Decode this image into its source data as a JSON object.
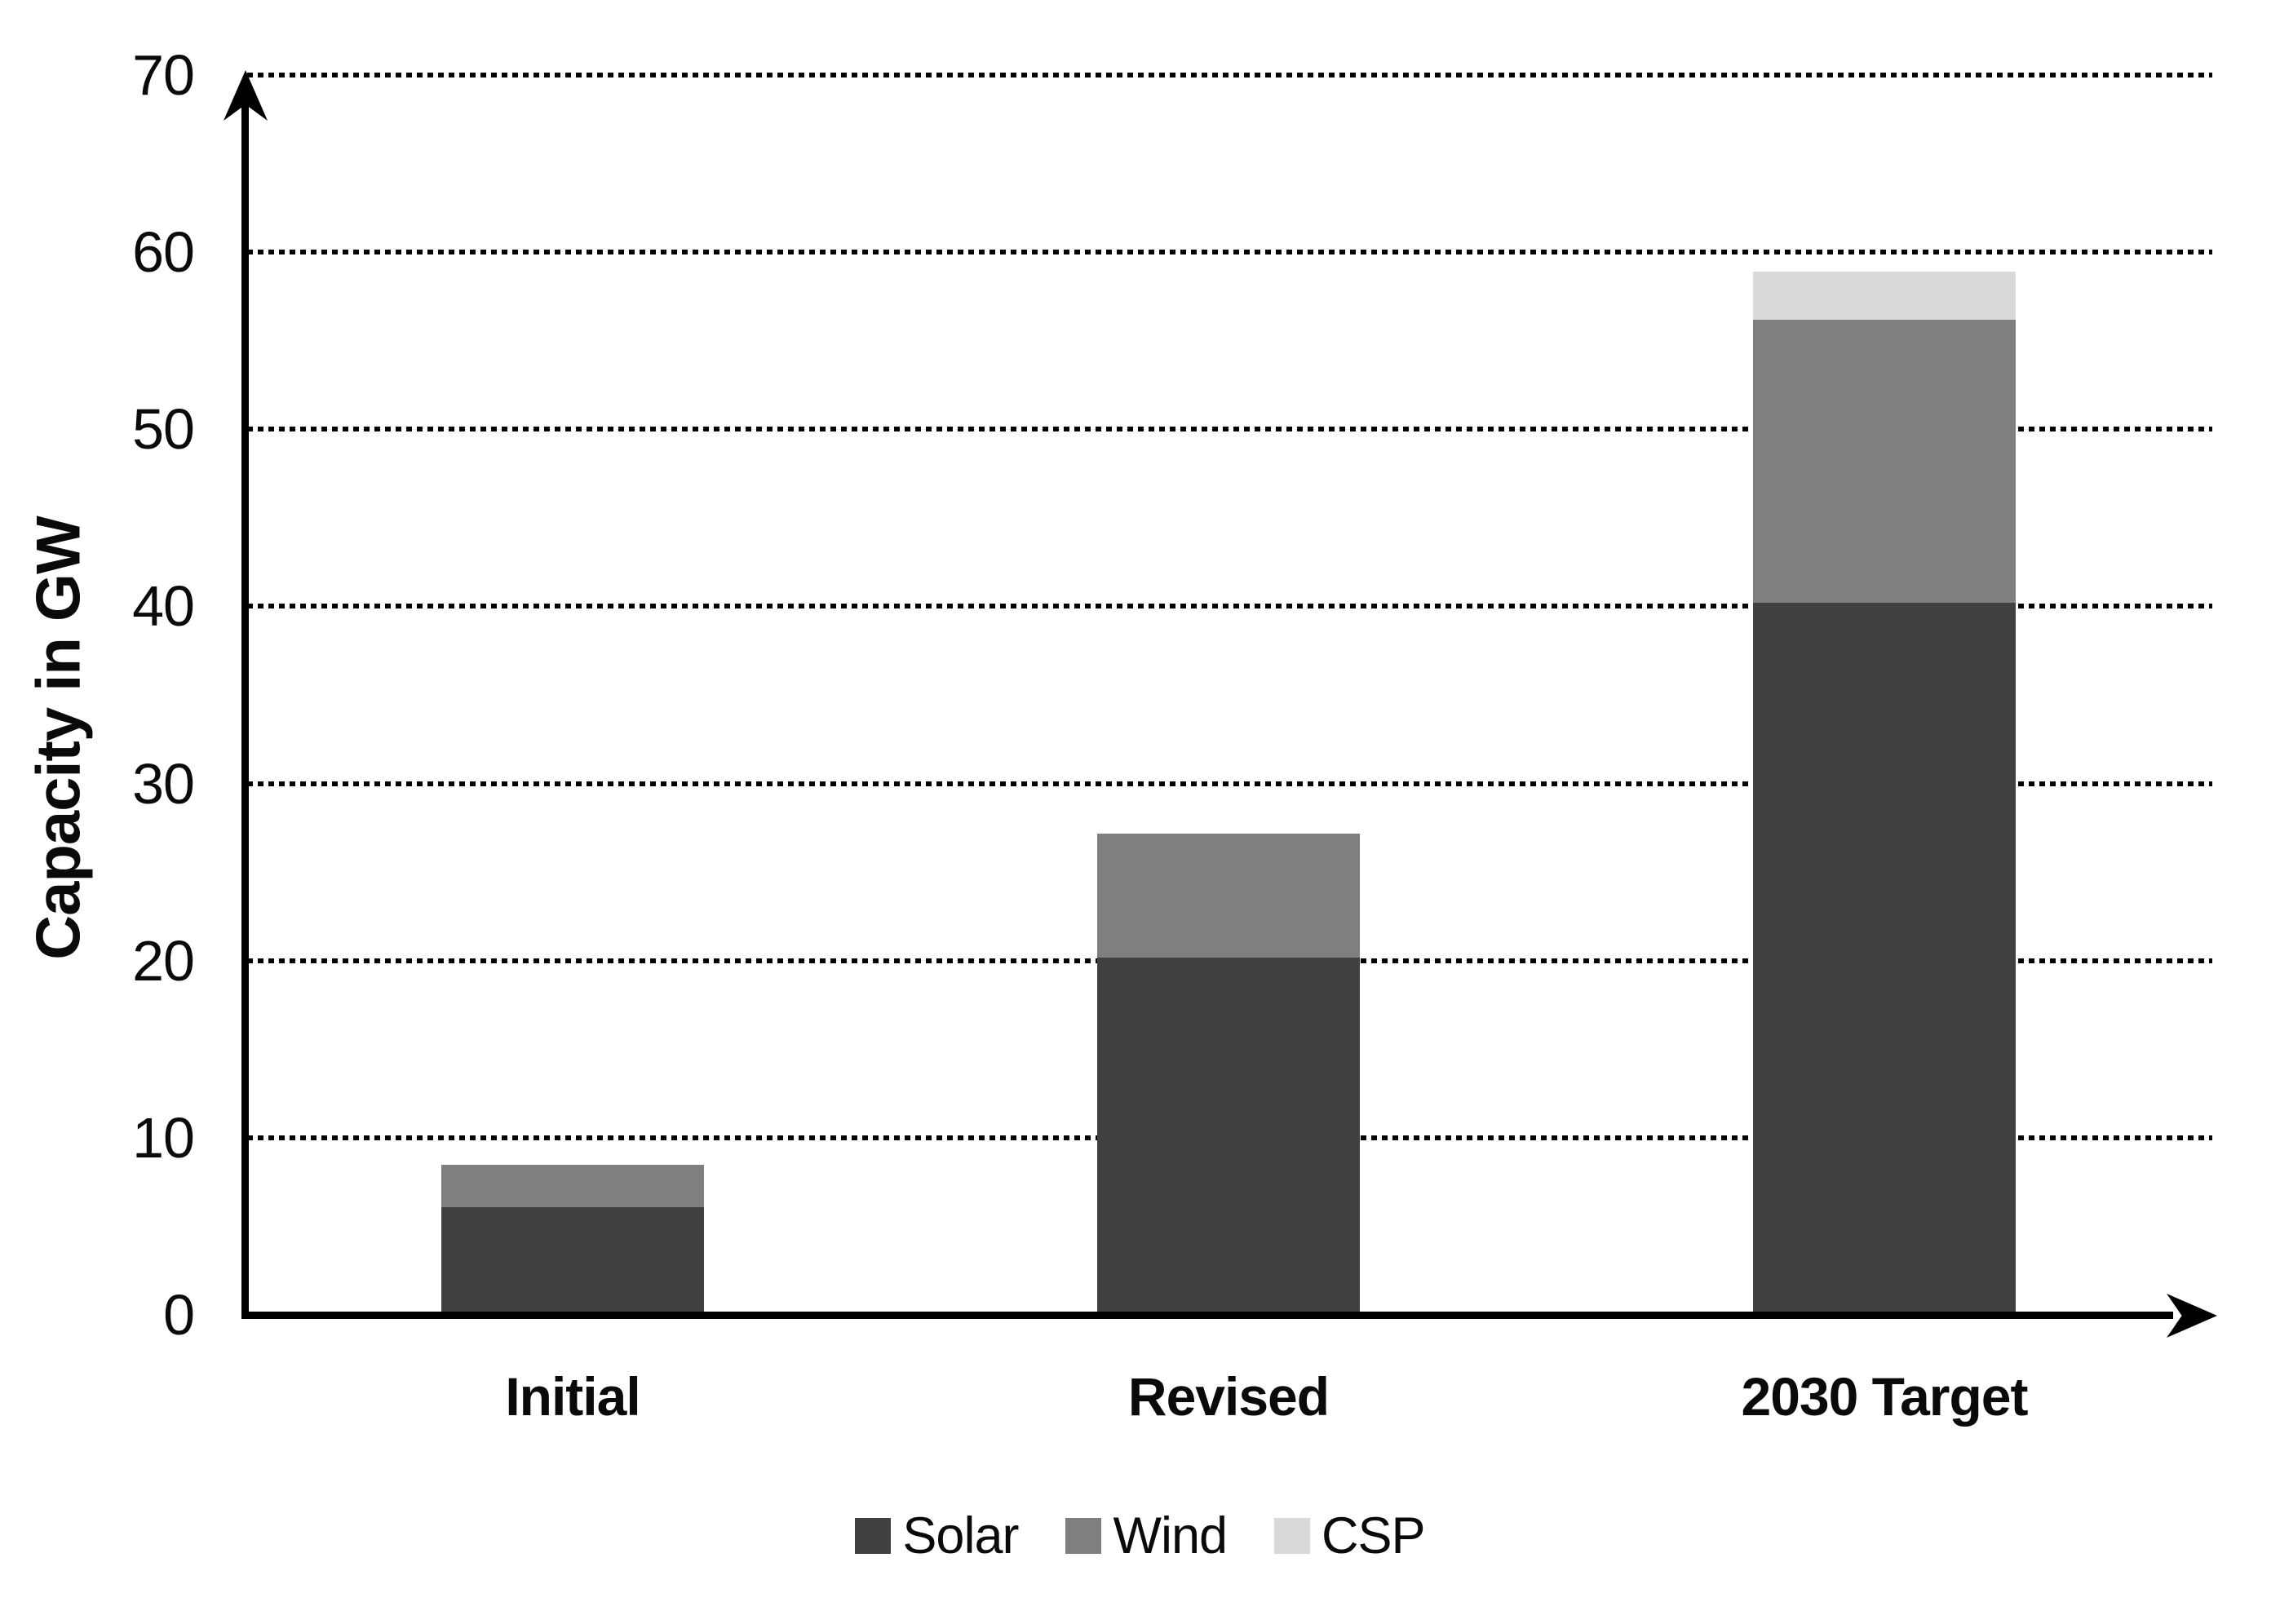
{
  "chart_data": {
    "type": "bar",
    "stacked": true,
    "categories": [
      "Initial",
      "Revised",
      "2030 Target"
    ],
    "series": [
      {
        "name": "Solar",
        "color": "#404040",
        "values": [
          5.9,
          20,
          40
        ]
      },
      {
        "name": "Wind",
        "color": "#7f7f7f",
        "values": [
          2.4,
          7,
          16
        ]
      },
      {
        "name": "CSP",
        "color": "#d9d9d9",
        "values": [
          0,
          0,
          2.7
        ]
      }
    ],
    "totals": [
      8.3,
      27,
      58.7
    ],
    "title": "",
    "xlabel": "",
    "ylabel": "Capacity in GW",
    "ylim": [
      0,
      70
    ],
    "yticks": [
      0,
      10,
      20,
      30,
      40,
      50,
      60,
      70
    ],
    "grid": "horizontal-dotted",
    "legend_position": "bottom",
    "axis_color": "#000000",
    "text_color": "#0a0a0a",
    "background_color": "#ffffff"
  }
}
